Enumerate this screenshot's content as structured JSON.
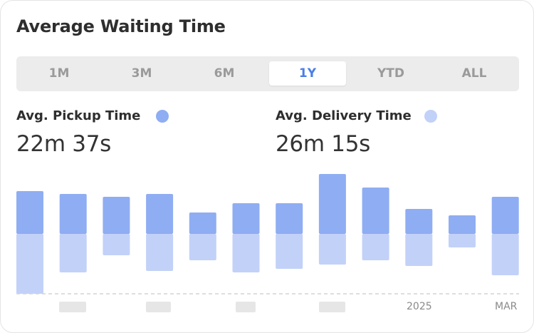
{
  "title": "Average Waiting Time",
  "tabs": [
    {
      "label": "1M",
      "active": false
    },
    {
      "label": "3M",
      "active": false
    },
    {
      "label": "6M",
      "active": false
    },
    {
      "label": "1Y",
      "active": true
    },
    {
      "label": "YTD",
      "active": false
    },
    {
      "label": "ALL",
      "active": false
    }
  ],
  "metrics": {
    "pickup": {
      "label": "Avg. Pickup Time",
      "value": "22m 37s",
      "color": "#8fadf2"
    },
    "delivery": {
      "label": "Avg. Delivery Time",
      "value": "26m 15s",
      "color": "#c2d1f8"
    }
  },
  "colors": {
    "accent": "#4a7ee8",
    "pickup_bar": "#8fadf2",
    "delivery_bar": "#c2d1f8"
  },
  "chart_data": {
    "type": "bar",
    "stacking": "diverging",
    "categories": [
      "",
      "",
      "",
      "",
      "",
      "",
      "",
      "",
      "",
      "2025",
      "",
      "MAR"
    ],
    "x_tick_labels": [
      "2025",
      "MAR"
    ],
    "series": [
      {
        "name": "Avg. Pickup Time",
        "values": [
          60,
          56,
          52,
          56,
          30,
          43,
          43,
          84,
          65,
          35,
          26,
          52
        ]
      },
      {
        "name": "Avg. Delivery Time",
        "values": [
          84,
          54,
          30,
          52,
          37,
          54,
          49,
          43,
          37,
          45,
          19,
          58
        ]
      }
    ],
    "grid": false,
    "baseline": "dashed"
  }
}
